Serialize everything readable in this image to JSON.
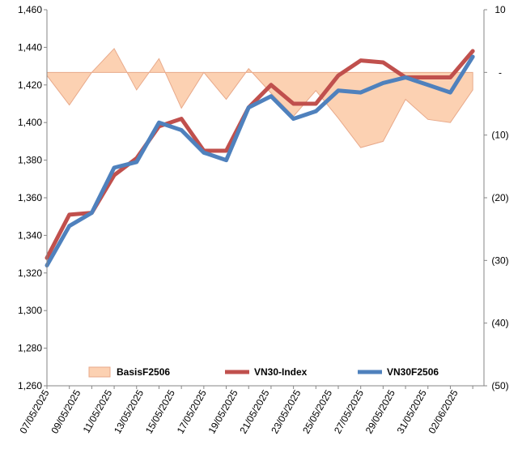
{
  "chart_data": {
    "type": "line",
    "title": "",
    "xlabel": "",
    "ylabel": "",
    "ylim": [
      1260,
      1460
    ],
    "y_ticks": [
      "1,260",
      "1,280",
      "1,300",
      "1,320",
      "1,340",
      "1,360",
      "1,380",
      "1,400",
      "1,420",
      "1,440",
      "1,460"
    ],
    "y2lim": [
      -50,
      10
    ],
    "y2_ticks": [
      "10",
      "-",
      "(10)",
      "(20)",
      "(30)",
      "(40)",
      "(50)"
    ],
    "x_tick_labels": [
      "07/05/2025",
      "09/05/2025",
      "11/05/2025",
      "13/05/2025",
      "15/05/2025",
      "17/05/2025",
      "19/05/2025",
      "21/05/2025",
      "23/05/2025",
      "25/05/2025",
      "27/05/2025",
      "29/05/2025",
      "31/05/2025",
      "02/06/2025"
    ],
    "x": [
      "07/05/2025",
      "08/05/2025",
      "09/05/2025",
      "12/05/2025",
      "13/05/2025",
      "14/05/2025",
      "15/05/2025",
      "16/05/2025",
      "19/05/2025",
      "20/05/2025",
      "21/05/2025",
      "22/05/2025",
      "23/05/2025",
      "26/05/2025",
      "27/05/2025",
      "28/05/2025",
      "29/05/2025",
      "30/05/2025",
      "02/06/2025",
      "03/06/2025"
    ],
    "series": [
      {
        "name": "BasisF2506",
        "type": "area",
        "axis": "right",
        "color": "#fcd1b2",
        "stroke": "#e8a98a",
        "values": [
          -0.5,
          -5.2,
          0.0,
          3.8,
          -2.8,
          2.2,
          -5.7,
          0.0,
          -4.3,
          0.6,
          -3.3,
          -7.0,
          -2.9,
          -7.3,
          -12.0,
          -11.0,
          -4.3,
          -7.5,
          -8.0,
          -2.8
        ]
      },
      {
        "name": "VN30-Index",
        "type": "line",
        "axis": "left",
        "color": "#c0504d",
        "values": [
          1328,
          1351,
          1352,
          1372,
          1381,
          1398,
          1402,
          1385,
          1385,
          1408,
          1420,
          1410,
          1410,
          1425,
          1433,
          1432,
          1424,
          1424,
          1424,
          1438
        ]
      },
      {
        "name": "VN30F2506",
        "type": "line",
        "axis": "left",
        "color": "#4f81bd",
        "values": [
          1324,
          1345,
          1352,
          1376,
          1379,
          1400,
          1396,
          1384,
          1380,
          1408,
          1414,
          1402,
          1406,
          1417,
          1416,
          1421,
          1424,
          1420,
          1416,
          1435
        ]
      }
    ],
    "legend": {
      "position": "bottom-inside",
      "items": [
        "BasisF2506",
        "VN30-Index",
        "VN30F2506"
      ]
    },
    "grid": false
  }
}
